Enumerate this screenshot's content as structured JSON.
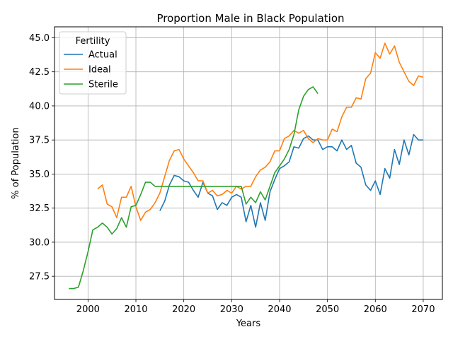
{
  "chart_data": {
    "type": "line",
    "title": "Proportion Male in Black Population",
    "xlabel": "Years",
    "ylabel": "% of Population",
    "xlim": [
      1993,
      2074
    ],
    "ylim": [
      25.8,
      45.8
    ],
    "xticks": [
      2000,
      2010,
      2020,
      2030,
      2040,
      2050,
      2060,
      2070
    ],
    "yticks": [
      27.5,
      30.0,
      32.5,
      35.0,
      37.5,
      40.0,
      42.5,
      45.0
    ],
    "ytick_labels": [
      "27.5",
      "30.0",
      "32.5",
      "35.0",
      "37.5",
      "40.0",
      "42.5",
      "45.0"
    ],
    "grid": true,
    "legend": {
      "title": "Fertility",
      "placement": "top-left"
    },
    "series": [
      {
        "name": "Actual",
        "color": "#1f77b4",
        "x": [
          2015,
          2016,
          2017,
          2018,
          2019,
          2020,
          2021,
          2022,
          2023,
          2024,
          2025,
          2026,
          2027,
          2028,
          2029,
          2030,
          2031,
          2032,
          2033,
          2034,
          2035,
          2036,
          2037,
          2038,
          2039,
          2040,
          2041,
          2042,
          2043,
          2044,
          2045,
          2046,
          2047,
          2048,
          2049,
          2050,
          2051,
          2052,
          2053,
          2054,
          2055,
          2056,
          2057,
          2058,
          2059,
          2060,
          2061,
          2062,
          2063,
          2064,
          2065,
          2066,
          2067,
          2068,
          2069,
          2070
        ],
        "values": [
          32.3,
          33.0,
          34.2,
          34.9,
          34.8,
          34.5,
          34.4,
          33.8,
          33.3,
          34.4,
          33.6,
          33.4,
          32.4,
          32.9,
          32.7,
          33.3,
          33.5,
          33.3,
          31.5,
          32.7,
          31.1,
          32.9,
          31.6,
          33.7,
          34.6,
          35.4,
          35.6,
          35.9,
          37.0,
          36.9,
          37.6,
          37.8,
          37.5,
          37.5,
          36.8,
          37.0,
          37.0,
          36.7,
          37.5,
          36.8,
          37.1,
          35.8,
          35.5,
          34.2,
          33.8,
          34.5,
          33.5,
          35.4,
          34.7,
          36.8,
          35.7,
          37.5,
          36.4,
          37.9,
          37.5,
          37.5
        ]
      },
      {
        "name": "Ideal",
        "color": "#ff7f0e",
        "x": [
          2002,
          2003,
          2004,
          2005,
          2006,
          2007,
          2008,
          2009,
          2010,
          2011,
          2012,
          2013,
          2014,
          2015,
          2016,
          2017,
          2018,
          2019,
          2020,
          2021,
          2022,
          2023,
          2024,
          2025,
          2026,
          2027,
          2028,
          2029,
          2030,
          2031,
          2032,
          2033,
          2034,
          2035,
          2036,
          2037,
          2038,
          2039,
          2040,
          2041,
          2042,
          2043,
          2044,
          2045,
          2046,
          2047,
          2048,
          2049,
          2050,
          2051,
          2052,
          2053,
          2054,
          2055,
          2056,
          2057,
          2058,
          2059,
          2060,
          2061,
          2062,
          2063,
          2064,
          2065,
          2066,
          2067,
          2068,
          2069,
          2070
        ],
        "values": [
          33.9,
          34.2,
          32.8,
          32.6,
          31.8,
          33.3,
          33.3,
          34.1,
          32.6,
          31.6,
          32.2,
          32.4,
          32.9,
          33.6,
          34.8,
          36.0,
          36.7,
          36.8,
          36.1,
          35.6,
          35.1,
          34.5,
          34.5,
          33.6,
          33.8,
          33.4,
          33.5,
          33.8,
          33.6,
          34.1,
          33.9,
          34.1,
          34.1,
          34.8,
          35.3,
          35.5,
          35.9,
          36.7,
          36.7,
          37.6,
          37.8,
          38.2,
          38.0,
          38.2,
          37.6,
          37.3,
          37.6,
          37.5,
          37.5,
          38.3,
          38.1,
          39.2,
          39.9,
          39.9,
          40.6,
          40.5,
          42.0,
          42.4,
          43.9,
          43.5,
          44.6,
          43.8,
          44.4,
          43.2,
          42.5,
          41.8,
          41.5,
          42.2,
          42.1
        ]
      },
      {
        "name": "Sterile",
        "color": "#2ca02c",
        "x": [
          1996,
          1997,
          1998,
          1999,
          2000,
          2001,
          2002,
          2003,
          2004,
          2005,
          2006,
          2007,
          2008,
          2009,
          2010,
          2011,
          2012,
          2013,
          2014,
          2015,
          2016,
          2017,
          2018,
          2019,
          2020,
          2021,
          2022,
          2023,
          2024,
          2025,
          2026,
          2027,
          2028,
          2029,
          2030,
          2031,
          2032,
          2033,
          2034,
          2035,
          2036,
          2037,
          2038,
          2039,
          2040,
          2041,
          2042,
          2043,
          2044,
          2045,
          2046,
          2047,
          2048
        ],
        "values": [
          26.6,
          26.6,
          26.7,
          27.9,
          29.3,
          30.9,
          31.1,
          31.4,
          31.1,
          30.6,
          31.0,
          31.8,
          31.1,
          32.6,
          32.7,
          33.5,
          34.4,
          34.4,
          34.1,
          34.1,
          34.1,
          34.1,
          34.1,
          34.1,
          34.1,
          34.1,
          34.1,
          34.1,
          34.1,
          34.1,
          34.1,
          34.1,
          34.1,
          34.1,
          34.1,
          34.1,
          34.1,
          32.8,
          33.3,
          32.9,
          33.7,
          33.1,
          34.1,
          35.1,
          35.6,
          36.1,
          36.8,
          37.9,
          39.7,
          40.7,
          41.2,
          41.4,
          40.9
        ]
      }
    ]
  }
}
